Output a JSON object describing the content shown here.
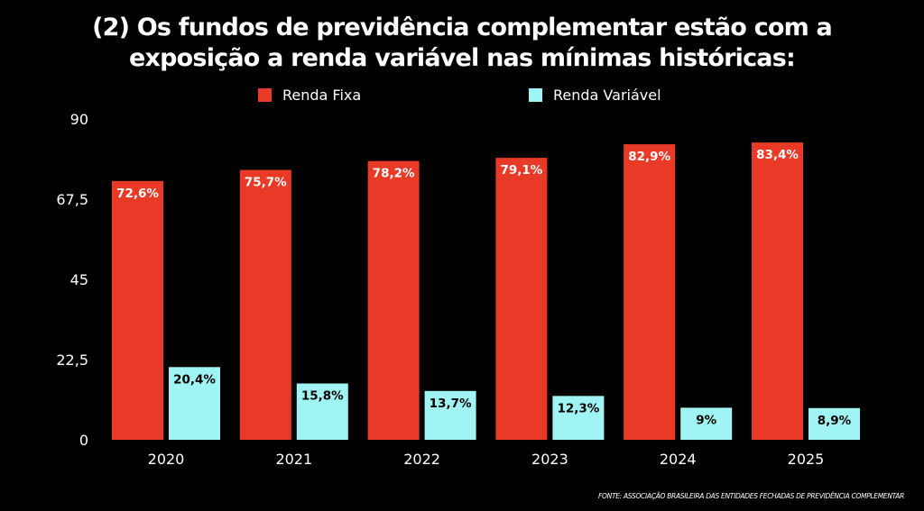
{
  "title_line1": "(2) Os fundos de previdência complementar estão com a",
  "title_line2": "exposição a renda variável nas mínimas históricas:",
  "source": "FONTE: ASSOCIAÇÃO BRASILEIRA DAS ENTIDADES FECHADAS DE PREVIDÊNCIA COMPLEMENTAR",
  "chart_data": {
    "type": "bar",
    "title": "(2) Os fundos de previdência complementar estão com a exposição a renda variável nas mínimas históricas:",
    "categories": [
      "2020",
      "2021",
      "2022",
      "2023",
      "2024",
      "2025"
    ],
    "series": [
      {
        "name": "Renda Fixa",
        "color": "#E83A26",
        "values": [
          72.6,
          75.7,
          78.2,
          79.1,
          82.9,
          83.4
        ],
        "labels": [
          "72,6%",
          "75,7%",
          "78,2%",
          "79,1%",
          "82,9%",
          "83,4%"
        ],
        "label_color": "#FFFFFF"
      },
      {
        "name": "Renda Variável",
        "color": "#A0F4F4",
        "values": [
          20.4,
          15.8,
          13.7,
          12.3,
          9,
          8.9
        ],
        "labels": [
          "20,4%",
          "15,8%",
          "13,7%",
          "12,3%",
          "9%",
          "8,9%"
        ],
        "label_color": "#000000"
      }
    ],
    "yticks": [
      "0",
      "22,5",
      "45",
      "67,5",
      "90"
    ],
    "ytick_values": [
      0,
      22.5,
      45,
      67.5,
      90
    ],
    "ylim": [
      0,
      90
    ],
    "xlabel": "",
    "ylabel": "",
    "grid": false,
    "legend_position": "top-center",
    "background": "#000000"
  }
}
